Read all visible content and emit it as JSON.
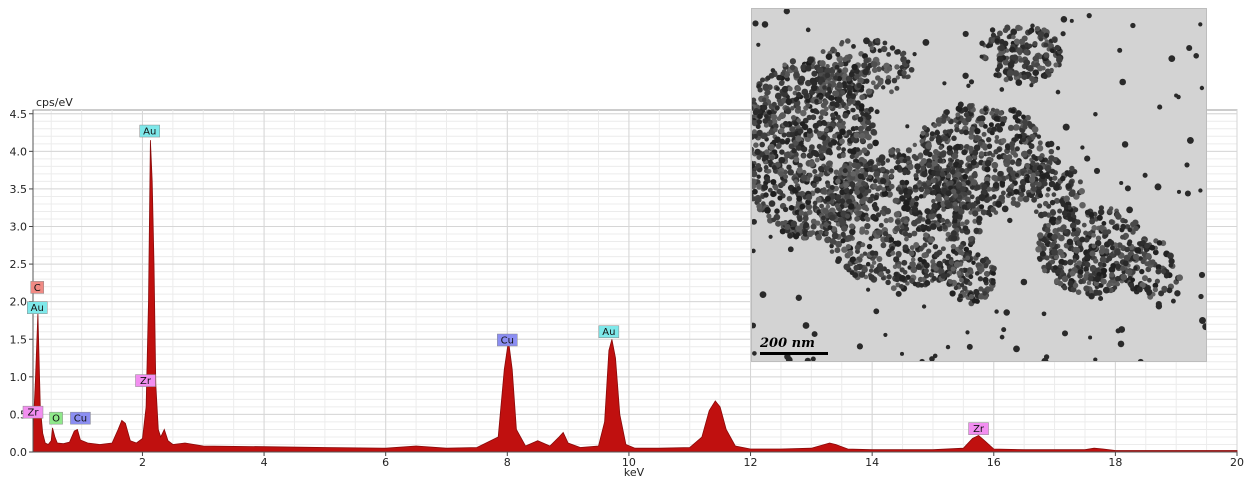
{
  "chart_data": {
    "type": "area",
    "ylabel": "cps/eV",
    "xlabel": "keV",
    "xlim": [
      0.2,
      20
    ],
    "ylim": [
      0,
      4.55
    ],
    "x_ticks": [
      2,
      4,
      6,
      8,
      10,
      12,
      14,
      16,
      18,
      20
    ],
    "y_ticks": [
      0.0,
      0.5,
      1.0,
      1.5,
      2.0,
      2.5,
      3.0,
      3.5,
      4.0,
      4.5
    ],
    "x_tick_labels": [
      "2",
      "4",
      "6",
      "8",
      "10",
      "12",
      "14",
      "16",
      "18",
      "20"
    ],
    "y_tick_labels": [
      "0.0",
      "0.5",
      "1.0",
      "1.5",
      "2.0",
      "2.5",
      "3.0",
      "3.5",
      "4.0",
      "4.5"
    ],
    "grid": true,
    "series": [
      {
        "color": "#c0100f",
        "x": [
          0.2,
          0.24,
          0.28,
          0.32,
          0.36,
          0.4,
          0.45,
          0.5,
          0.52,
          0.56,
          0.6,
          0.7,
          0.8,
          0.88,
          0.93,
          0.98,
          1.1,
          1.3,
          1.5,
          1.6,
          1.66,
          1.72,
          1.8,
          1.9,
          2.0,
          2.06,
          2.1,
          2.13,
          2.16,
          2.19,
          2.22,
          2.26,
          2.3,
          2.36,
          2.42,
          2.5,
          2.7,
          3.0,
          4.0,
          5.0,
          6.0,
          6.5,
          7.0,
          7.5,
          7.85,
          7.95,
          8.02,
          8.08,
          8.15,
          8.3,
          8.5,
          8.7,
          8.85,
          8.92,
          9.0,
          9.2,
          9.5,
          9.6,
          9.67,
          9.72,
          9.78,
          9.85,
          9.95,
          10.1,
          10.5,
          11.0,
          11.2,
          11.32,
          11.42,
          11.5,
          11.6,
          11.75,
          12.0,
          12.5,
          13.0,
          13.3,
          13.4,
          13.6,
          14.0,
          15.0,
          15.5,
          15.65,
          15.75,
          15.85,
          16.0,
          16.5,
          17.0,
          17.5,
          17.65,
          17.8,
          18.0,
          19.0,
          20.0
        ],
        "y": [
          0.25,
          0.95,
          1.85,
          0.6,
          0.25,
          0.12,
          0.1,
          0.15,
          0.32,
          0.2,
          0.12,
          0.11,
          0.13,
          0.28,
          0.3,
          0.16,
          0.12,
          0.1,
          0.12,
          0.3,
          0.42,
          0.38,
          0.15,
          0.12,
          0.18,
          0.6,
          2.0,
          4.15,
          3.6,
          2.5,
          0.9,
          0.3,
          0.2,
          0.3,
          0.15,
          0.1,
          0.12,
          0.08,
          0.07,
          0.06,
          0.05,
          0.08,
          0.05,
          0.06,
          0.2,
          1.1,
          1.48,
          1.1,
          0.3,
          0.08,
          0.15,
          0.08,
          0.2,
          0.26,
          0.12,
          0.06,
          0.08,
          0.4,
          1.35,
          1.5,
          1.25,
          0.5,
          0.1,
          0.05,
          0.05,
          0.06,
          0.2,
          0.55,
          0.68,
          0.6,
          0.3,
          0.08,
          0.04,
          0.04,
          0.05,
          0.12,
          0.1,
          0.04,
          0.03,
          0.03,
          0.05,
          0.18,
          0.22,
          0.15,
          0.04,
          0.03,
          0.03,
          0.03,
          0.05,
          0.04,
          0.02,
          0.02,
          0.02
        ]
      }
    ],
    "peak_labels": [
      {
        "text": "Au",
        "x": 2.12,
        "y": 4.27,
        "color": "#7ee8ea"
      },
      {
        "text": "C",
        "x": 0.27,
        "y": 2.19,
        "color": "#f08a84"
      },
      {
        "text": "Au",
        "x": 0.27,
        "y": 1.92,
        "color": "#7ee8ea"
      },
      {
        "text": "Zr",
        "x": 2.05,
        "y": 0.95,
        "color": "#f28ef0"
      },
      {
        "text": "Zr",
        "x": 0.2,
        "y": 0.53,
        "color": "#f28ef0"
      },
      {
        "text": "O",
        "x": 0.58,
        "y": 0.45,
        "color": "#8fe88a"
      },
      {
        "text": "Cu",
        "x": 0.98,
        "y": 0.45,
        "color": "#8b8ef2"
      },
      {
        "text": "Cu",
        "x": 8.0,
        "y": 1.49,
        "color": "#8b8ef2"
      },
      {
        "text": "Au",
        "x": 9.67,
        "y": 1.6,
        "color": "#7ee8ea"
      },
      {
        "text": "Zr",
        "x": 15.75,
        "y": 0.31,
        "color": "#f28ef0"
      }
    ]
  },
  "inset": {
    "scale_bar_text": "200 nm"
  }
}
